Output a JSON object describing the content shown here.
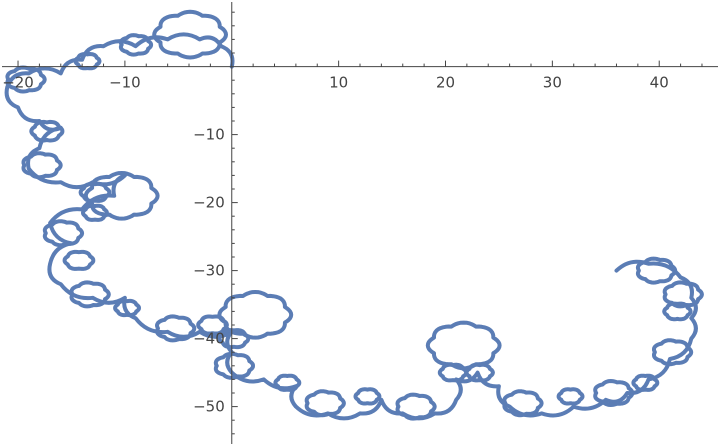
{
  "chart_data": {
    "type": "line",
    "title": "",
    "xlabel": "",
    "ylabel": "",
    "xlim": [
      -21.5,
      45.5
    ],
    "ylim": [
      -55.5,
      9.5
    ],
    "x_ticks": [
      -20,
      -10,
      10,
      20,
      30,
      40
    ],
    "x_tick_labels": [
      "−20",
      "−10",
      "10",
      "20",
      "30",
      "40"
    ],
    "y_ticks": [
      -10,
      -20,
      -30,
      -40,
      -50
    ],
    "y_tick_labels": [
      "−10",
      "−20",
      "−30",
      "−40",
      "−50"
    ],
    "grid": false,
    "legend": "none",
    "series": [
      {
        "color": "#5b7db5",
        "points": [
          [
            0,
            0
          ],
          [
            -1,
            3
          ],
          [
            -3,
            4
          ],
          [
            -6,
            4
          ],
          [
            -9,
            3
          ],
          [
            -12,
            3
          ],
          [
            -14,
            1
          ],
          [
            -16,
            -1
          ],
          [
            -19,
            -1
          ],
          [
            -21,
            -3
          ],
          [
            -20,
            -6
          ],
          [
            -18,
            -8
          ],
          [
            -16,
            -9
          ],
          [
            -18,
            -12
          ],
          [
            -19,
            -15
          ],
          [
            -16,
            -17
          ],
          [
            -13,
            -17
          ],
          [
            -10,
            -16
          ],
          [
            -11,
            -19
          ],
          [
            -14,
            -21
          ],
          [
            -17,
            -23
          ],
          [
            -15,
            -26
          ],
          [
            -17,
            -29
          ],
          [
            -16,
            -32
          ],
          [
            -13,
            -34
          ],
          [
            -10,
            -34
          ],
          [
            -9,
            -37
          ],
          [
            -6,
            -39
          ],
          [
            -3,
            -39
          ],
          [
            0,
            -39
          ],
          [
            0,
            -42
          ],
          [
            0,
            -45
          ],
          [
            3,
            -46
          ],
          [
            6,
            -47
          ],
          [
            6,
            -50
          ],
          [
            9,
            -51
          ],
          [
            12,
            -51
          ],
          [
            14,
            -49
          ],
          [
            16,
            -51
          ],
          [
            19,
            -51
          ],
          [
            21,
            -49
          ],
          [
            21,
            -46
          ],
          [
            23,
            -45
          ],
          [
            25,
            -47
          ],
          [
            26,
            -50
          ],
          [
            29,
            -51
          ],
          [
            32,
            -50
          ],
          [
            35,
            -49
          ],
          [
            37,
            -48
          ],
          [
            39,
            -46
          ],
          [
            41,
            -43
          ],
          [
            43,
            -40
          ],
          [
            43,
            -37
          ],
          [
            43,
            -34
          ],
          [
            42,
            -31
          ],
          [
            39,
            -29
          ],
          [
            36,
            -30
          ]
        ],
        "petals": [
          [
            -3.9,
            4.7,
            3.0,
            8
          ],
          [
            -9.0,
            3.2,
            1.3,
            7
          ],
          [
            -13.5,
            0.8,
            1.0,
            6
          ],
          [
            -19.3,
            -1.9,
            1.6,
            7
          ],
          [
            -17.3,
            -9.5,
            1.3,
            6
          ],
          [
            -17.8,
            -14.5,
            1.6,
            7
          ],
          [
            -10.3,
            -19.0,
            3.0,
            8
          ],
          [
            -12.8,
            -18.5,
            1.2,
            6
          ],
          [
            -12.8,
            -21.5,
            1.0,
            6
          ],
          [
            -15.8,
            -24.5,
            1.6,
            7
          ],
          [
            -14.3,
            -28.5,
            1.2,
            6
          ],
          [
            -13.3,
            -33.5,
            1.6,
            7
          ],
          [
            -9.8,
            -35.5,
            1.0,
            6
          ],
          [
            -5.3,
            -38.5,
            1.6,
            7
          ],
          [
            2.2,
            -36.5,
            3.0,
            8
          ],
          [
            -1.8,
            -38.0,
            1.2,
            6
          ],
          [
            0.2,
            -40.0,
            1.2,
            6
          ],
          [
            0.2,
            -44.0,
            1.6,
            7
          ],
          [
            5.2,
            -46.5,
            1.0,
            6
          ],
          [
            8.7,
            -49.5,
            1.6,
            7
          ],
          [
            12.7,
            -48.5,
            1.0,
            6
          ],
          [
            17.2,
            -50.0,
            1.6,
            7
          ],
          [
            21.7,
            -41.0,
            3.0,
            8
          ],
          [
            20.7,
            -45.0,
            1.1,
            6
          ],
          [
            23.2,
            -45.0,
            1.1,
            6
          ],
          [
            27.2,
            -49.5,
            1.6,
            7
          ],
          [
            31.7,
            -48.5,
            1.0,
            6
          ],
          [
            35.7,
            -48.0,
            1.6,
            7
          ],
          [
            38.7,
            -46.5,
            1.0,
            6
          ],
          [
            41.2,
            -42.0,
            1.6,
            7
          ],
          [
            41.7,
            -36.0,
            1.1,
            6
          ],
          [
            42.2,
            -33.5,
            1.6,
            7
          ],
          [
            39.7,
            -30.0,
            1.6,
            7
          ]
        ]
      }
    ]
  }
}
